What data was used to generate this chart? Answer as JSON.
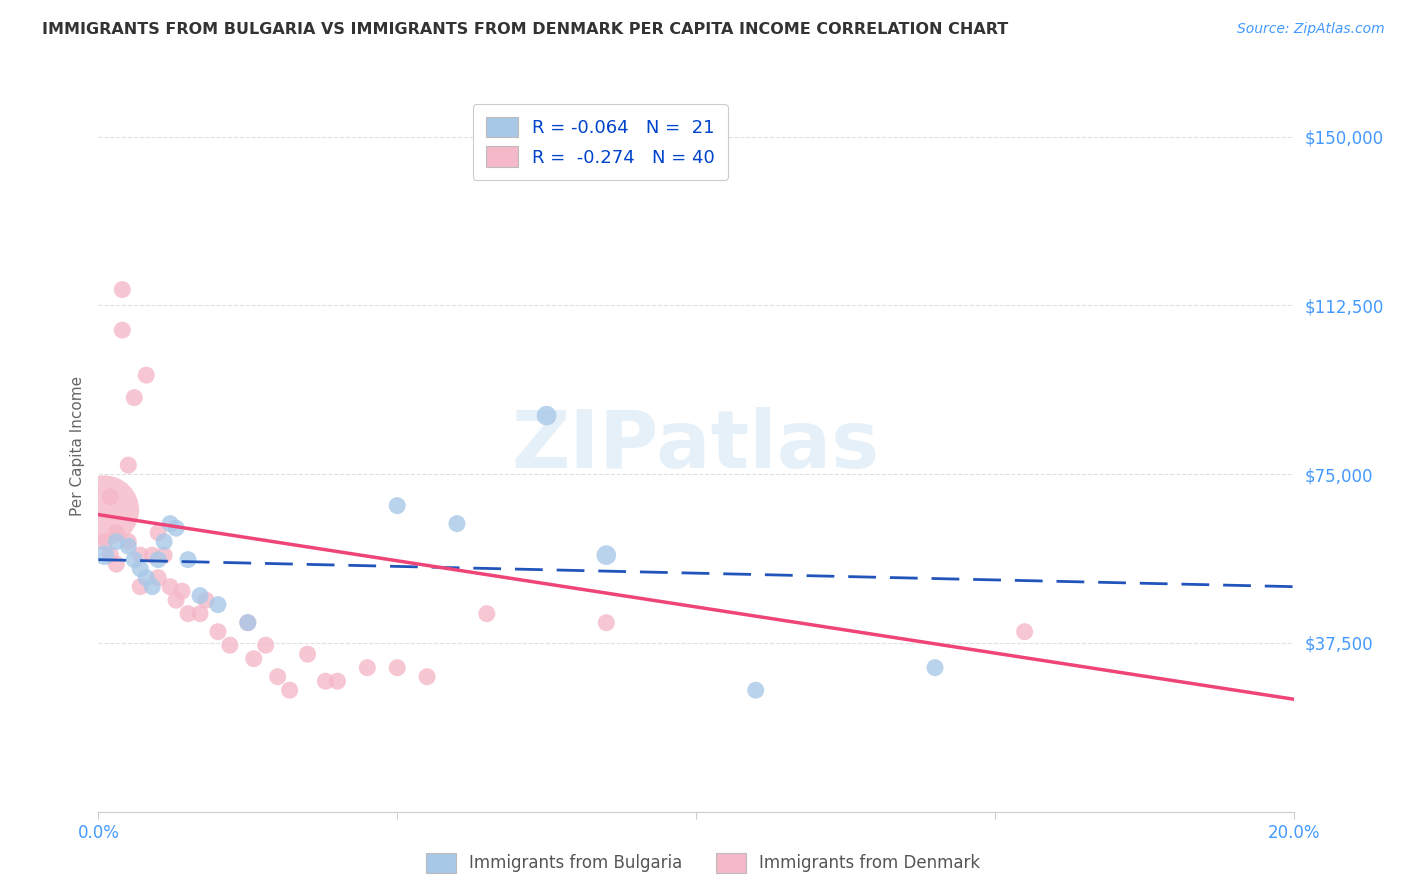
{
  "title": "IMMIGRANTS FROM BULGARIA VS IMMIGRANTS FROM DENMARK PER CAPITA INCOME CORRELATION CHART",
  "source": "Source: ZipAtlas.com",
  "ylabel": "Per Capita Income",
  "xlim": [
    0.0,
    0.2
  ],
  "ylim": [
    0,
    162500
  ],
  "yticks": [
    0,
    37500,
    75000,
    112500,
    150000
  ],
  "ytick_labels": [
    "",
    "$37,500",
    "$75,000",
    "$112,500",
    "$150,000"
  ],
  "xtick_positions": [
    0.0,
    0.05,
    0.1,
    0.15,
    0.2
  ],
  "xtick_labels": [
    "0.0%",
    "",
    "",
    "",
    "20.0%"
  ],
  "bg_color": "#ffffff",
  "grid_color": "#e0e0e0",
  "bulgaria_color": "#a8c8e8",
  "denmark_color": "#f5b8c8",
  "bulgaria_line_color": "#2255bb",
  "denmark_line_color": "#ee4477",
  "watermark": "ZIPatlas",
  "legend_label_1": "R = -0.064   N =  21",
  "legend_label_2": "R =  -0.274   N = 40",
  "bottom_legend_1": "Immigrants from Bulgaria",
  "bottom_legend_2": "Immigrants from Denmark",
  "bulgaria_x": [
    0.001,
    0.003,
    0.005,
    0.006,
    0.007,
    0.008,
    0.009,
    0.01,
    0.011,
    0.012,
    0.013,
    0.015,
    0.017,
    0.02,
    0.025,
    0.05,
    0.06,
    0.075,
    0.085,
    0.11,
    0.14
  ],
  "bulgaria_y": [
    57000,
    60000,
    59000,
    56000,
    54000,
    52000,
    50000,
    56000,
    60000,
    64000,
    63000,
    56000,
    48000,
    46000,
    42000,
    68000,
    64000,
    88000,
    57000,
    27000,
    32000
  ],
  "bulgaria_sizes": [
    200,
    150,
    150,
    150,
    150,
    150,
    150,
    150,
    150,
    150,
    150,
    150,
    150,
    150,
    150,
    150,
    150,
    200,
    200,
    150,
    150
  ],
  "denmark_x": [
    0.001,
    0.001,
    0.002,
    0.002,
    0.003,
    0.003,
    0.004,
    0.004,
    0.005,
    0.005,
    0.006,
    0.007,
    0.007,
    0.008,
    0.009,
    0.01,
    0.01,
    0.011,
    0.012,
    0.013,
    0.014,
    0.015,
    0.017,
    0.018,
    0.02,
    0.022,
    0.025,
    0.026,
    0.028,
    0.03,
    0.032,
    0.035,
    0.038,
    0.04,
    0.045,
    0.05,
    0.055,
    0.065,
    0.085,
    0.155
  ],
  "denmark_y": [
    67000,
    60000,
    70000,
    57000,
    62000,
    55000,
    116000,
    107000,
    77000,
    60000,
    92000,
    57000,
    50000,
    97000,
    57000,
    62000,
    52000,
    57000,
    50000,
    47000,
    49000,
    44000,
    44000,
    47000,
    40000,
    37000,
    42000,
    34000,
    37000,
    30000,
    27000,
    35000,
    29000,
    29000,
    32000,
    32000,
    30000,
    44000,
    42000,
    40000
  ],
  "denmark_sizes": [
    2500,
    150,
    150,
    150,
    150,
    150,
    150,
    150,
    150,
    150,
    150,
    150,
    150,
    150,
    150,
    150,
    150,
    150,
    150,
    150,
    150,
    150,
    150,
    150,
    150,
    150,
    150,
    150,
    150,
    150,
    150,
    150,
    150,
    150,
    150,
    150,
    150,
    150,
    150,
    150
  ],
  "bulgaria_line_x": [
    0.0,
    0.2
  ],
  "bulgaria_line_y": [
    56000,
    50000
  ],
  "denmark_line_x": [
    0.0,
    0.2
  ],
  "denmark_line_y": [
    66000,
    25000
  ]
}
